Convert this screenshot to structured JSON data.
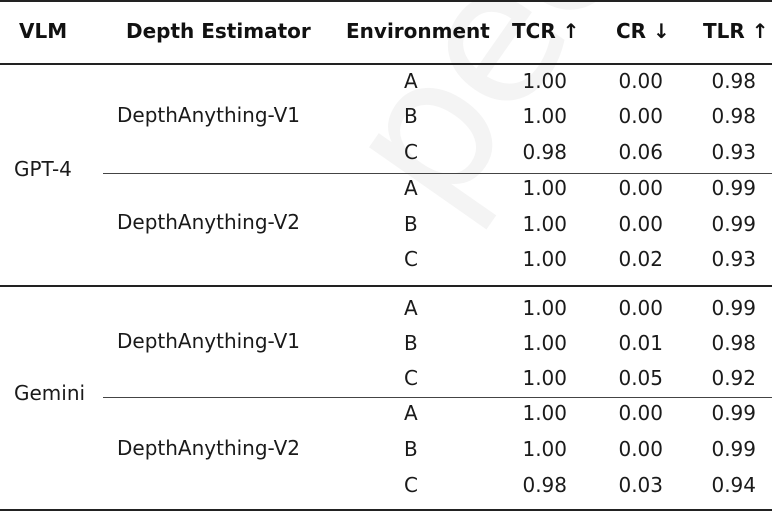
{
  "headers": {
    "vlm": "VLM",
    "depth": "Depth Estimator",
    "environment": "Environment",
    "tcr": "TCR ↑",
    "cr": "CR ↓",
    "tlr": "TLR ↑"
  },
  "groups": [
    {
      "vlm": "GPT-4",
      "estimators": [
        {
          "name": "DepthAnything-V1",
          "rows": [
            {
              "env": "A",
              "tcr": "1.00",
              "cr": "0.00",
              "tlr": "0.98"
            },
            {
              "env": "B",
              "tcr": "1.00",
              "cr": "0.00",
              "tlr": "0.98"
            },
            {
              "env": "C",
              "tcr": "0.98",
              "cr": "0.06",
              "tlr": "0.93"
            }
          ]
        },
        {
          "name": "DepthAnything-V2",
          "rows": [
            {
              "env": "A",
              "tcr": "1.00",
              "cr": "0.00",
              "tlr": "0.99"
            },
            {
              "env": "B",
              "tcr": "1.00",
              "cr": "0.00",
              "tlr": "0.99"
            },
            {
              "env": "C",
              "tcr": "1.00",
              "cr": "0.02",
              "tlr": "0.93"
            }
          ]
        }
      ]
    },
    {
      "vlm": "Gemini",
      "estimators": [
        {
          "name": "DepthAnything-V1",
          "rows": [
            {
              "env": "A",
              "tcr": "1.00",
              "cr": "0.00",
              "tlr": "0.99"
            },
            {
              "env": "B",
              "tcr": "1.00",
              "cr": "0.01",
              "tlr": "0.98"
            },
            {
              "env": "C",
              "tcr": "1.00",
              "cr": "0.05",
              "tlr": "0.92"
            }
          ]
        },
        {
          "name": "DepthAnything-V2",
          "rows": [
            {
              "env": "A",
              "tcr": "1.00",
              "cr": "0.00",
              "tlr": "0.99"
            },
            {
              "env": "B",
              "tcr": "1.00",
              "cr": "0.00",
              "tlr": "0.99"
            },
            {
              "env": "C",
              "tcr": "0.98",
              "cr": "0.03",
              "tlr": "0.94"
            }
          ]
        }
      ]
    }
  ],
  "watermark": "peer re"
}
